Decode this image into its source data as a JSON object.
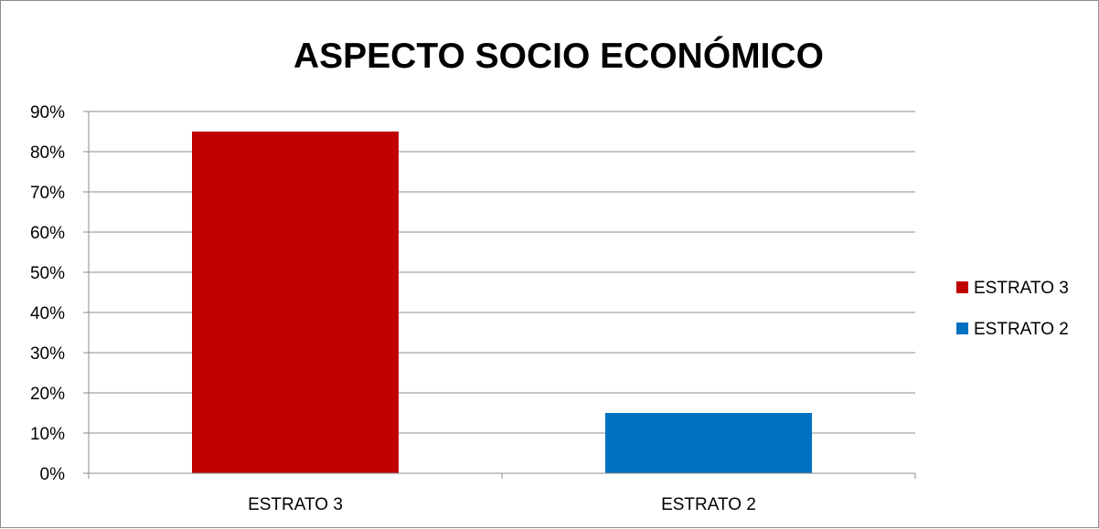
{
  "chart_data": {
    "type": "bar",
    "title": "ASPECTO SOCIO ECONÓMICO",
    "xlabel": "",
    "ylabel": "",
    "categories": [
      "ESTRATO 3",
      "ESTRATO 2"
    ],
    "values": [
      0.85,
      0.15
    ],
    "ylim": [
      0,
      0.9
    ],
    "y_tick_step": 0.1,
    "y_tick_format": "percent",
    "grid": true,
    "legend_position": "right",
    "legend": [
      {
        "name": "ESTRATO 3",
        "color": "#c00000"
      },
      {
        "name": "ESTRATO 2",
        "color": "#0070c0"
      }
    ],
    "colors": [
      "#c00000",
      "#0070c0"
    ]
  }
}
